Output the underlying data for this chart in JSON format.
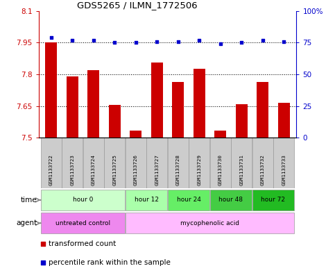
{
  "title": "GDS5265 / ILMN_1772506",
  "samples": [
    "GSM1133722",
    "GSM1133723",
    "GSM1133724",
    "GSM1133725",
    "GSM1133726",
    "GSM1133727",
    "GSM1133728",
    "GSM1133729",
    "GSM1133730",
    "GSM1133731",
    "GSM1133732",
    "GSM1133733"
  ],
  "bar_values": [
    7.95,
    7.79,
    7.82,
    7.655,
    7.535,
    7.855,
    7.765,
    7.825,
    7.535,
    7.66,
    7.765,
    7.665
  ],
  "percentile_values": [
    79,
    77,
    77,
    75,
    75,
    76,
    76,
    77,
    74,
    75,
    77,
    76
  ],
  "ymin": 7.5,
  "ymax": 8.1,
  "yticks": [
    7.5,
    7.65,
    7.8,
    7.95,
    8.1
  ],
  "ytick_labels": [
    "7.5",
    "7.65",
    "7.8",
    "7.95",
    "8.1"
  ],
  "y2min": 0,
  "y2max": 100,
  "y2ticks": [
    0,
    25,
    50,
    75,
    100
  ],
  "y2tick_labels": [
    "0",
    "25",
    "50",
    "75",
    "100%"
  ],
  "hlines": [
    7.65,
    7.8,
    7.95
  ],
  "bar_color": "#cc0000",
  "dot_color": "#0000cc",
  "time_groups": [
    {
      "label": "hour 0",
      "start": 0,
      "end": 4,
      "color": "#ccffcc"
    },
    {
      "label": "hour 12",
      "start": 4,
      "end": 6,
      "color": "#aaffaa"
    },
    {
      "label": "hour 24",
      "start": 6,
      "end": 8,
      "color": "#66ee66"
    },
    {
      "label": "hour 48",
      "start": 8,
      "end": 10,
      "color": "#44cc44"
    },
    {
      "label": "hour 72",
      "start": 10,
      "end": 12,
      "color": "#22bb22"
    }
  ],
  "agent_groups": [
    {
      "label": "untreated control",
      "start": 0,
      "end": 4,
      "color": "#ee88ee"
    },
    {
      "label": "mycophenolic acid",
      "start": 4,
      "end": 12,
      "color": "#ffbbff"
    }
  ],
  "legend_bar_label": "transformed count",
  "legend_dot_label": "percentile rank within the sample",
  "sample_box_color": "#cccccc",
  "background_color": "#ffffff",
  "arrow_color": "#888888"
}
